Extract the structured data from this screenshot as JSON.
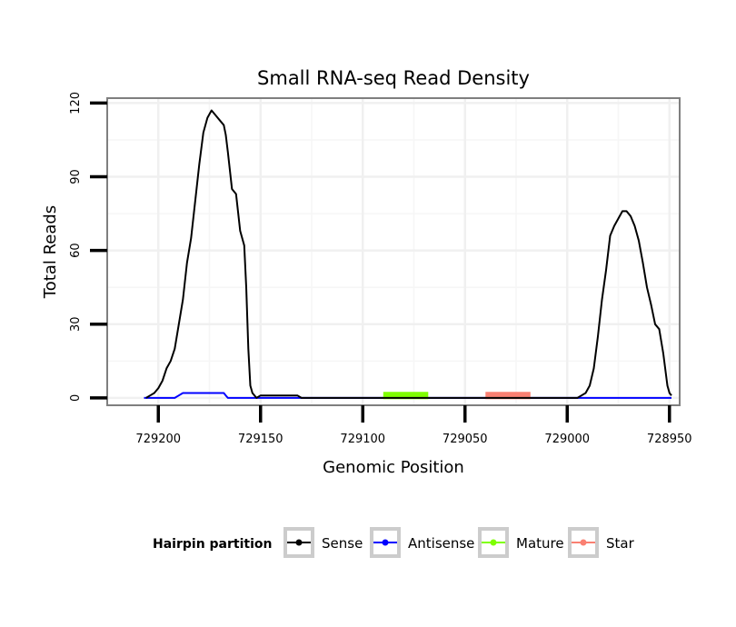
{
  "chart_data": {
    "type": "line",
    "title": "Small RNA-seq Read Density",
    "xlabel": "Genomic Position",
    "ylabel": "Total Reads",
    "xlim": [
      729225,
      728945
    ],
    "x_reversed": true,
    "ylim": [
      -3,
      122
    ],
    "grid": true,
    "x_ticks": [
      729200,
      729150,
      729100,
      729050,
      729000,
      728950
    ],
    "x_tick_labels": [
      "729200",
      "729150",
      "729100",
      "729050",
      "729000",
      "728950"
    ],
    "y_ticks": [
      0,
      30,
      60,
      90,
      120
    ],
    "y_tick_labels": [
      "0",
      "30",
      "60",
      "90",
      "120"
    ],
    "legend": {
      "title": "Hairpin partition",
      "placement": "bottom",
      "entries": [
        {
          "name": "Sense",
          "color": "#000000"
        },
        {
          "name": "Antisense",
          "color": "#0000ff"
        },
        {
          "name": "Mature",
          "color": "#7fff00"
        },
        {
          "name": "Star",
          "color": "#fa8072"
        }
      ]
    },
    "series": [
      {
        "name": "Sense",
        "color": "#000000",
        "x": [
          729206,
          729204,
          729202,
          729200,
          729198,
          729196,
          729194,
          729192,
          729190,
          729188,
          729186,
          729184,
          729182,
          729180,
          729178,
          729176,
          729174,
          729172,
          729170,
          729168,
          729167,
          729166,
          729164,
          729162,
          729160,
          729158,
          729157,
          729156,
          729155,
          729154,
          729152,
          729150,
          729148,
          729147,
          729146,
          729145,
          729144,
          729142,
          729140,
          729138,
          729136,
          729134,
          729132,
          729130,
          729128,
          729126,
          729124,
          729122,
          729120,
          729118,
          729116,
          729110,
          729100,
          729090,
          729080,
          729070,
          729060,
          729050,
          729040,
          729030,
          729020,
          729010,
          729000,
          728995,
          728993,
          728991,
          728989,
          728987,
          728985,
          728983,
          728981,
          728979,
          728977,
          728975,
          728973,
          728971,
          728969,
          728967,
          728965,
          728963,
          728961,
          728959,
          728957,
          728955,
          728953,
          728951,
          728950,
          728949
        ],
        "y": [
          0,
          1,
          2,
          4,
          7,
          12,
          15,
          20,
          30,
          40,
          55,
          65,
          80,
          95,
          108,
          114,
          117,
          115,
          113,
          111,
          107,
          100,
          85,
          83,
          68,
          62,
          45,
          20,
          5,
          2,
          0,
          1,
          1,
          1,
          1,
          1,
          1,
          1,
          1,
          1,
          1,
          1,
          1,
          0,
          0,
          0,
          0,
          0,
          0,
          0,
          0,
          0,
          0,
          0,
          0,
          0,
          0,
          0,
          0,
          0,
          0,
          0,
          0,
          0,
          1,
          2,
          5,
          12,
          25,
          40,
          52,
          66,
          70,
          73,
          76,
          76,
          74,
          70,
          64,
          55,
          45,
          38,
          30,
          28,
          18,
          5,
          2,
          1
        ]
      },
      {
        "name": "Antisense",
        "color": "#0000ff",
        "x": [
          729207,
          729200,
          729192,
          729190,
          729188,
          729186,
          729175,
          729168,
          729167,
          729166,
          729164,
          729160,
          729150,
          729140,
          729120,
          729100,
          729080,
          729060,
          729040,
          729020,
          729000,
          728980,
          728960,
          728949
        ],
        "y": [
          0,
          0,
          0,
          1,
          2,
          2,
          2,
          2,
          1,
          0,
          0,
          0,
          0,
          0,
          0,
          0,
          0,
          0,
          0,
          0,
          0,
          0,
          0,
          0
        ]
      },
      {
        "name": "Mature",
        "color": "#7fff00",
        "x": [
          729090,
          729068
        ],
        "y": [
          1,
          1
        ]
      },
      {
        "name": "Star",
        "color": "#fa8072",
        "x": [
          729040,
          729018
        ],
        "y": [
          1,
          1
        ]
      }
    ]
  }
}
